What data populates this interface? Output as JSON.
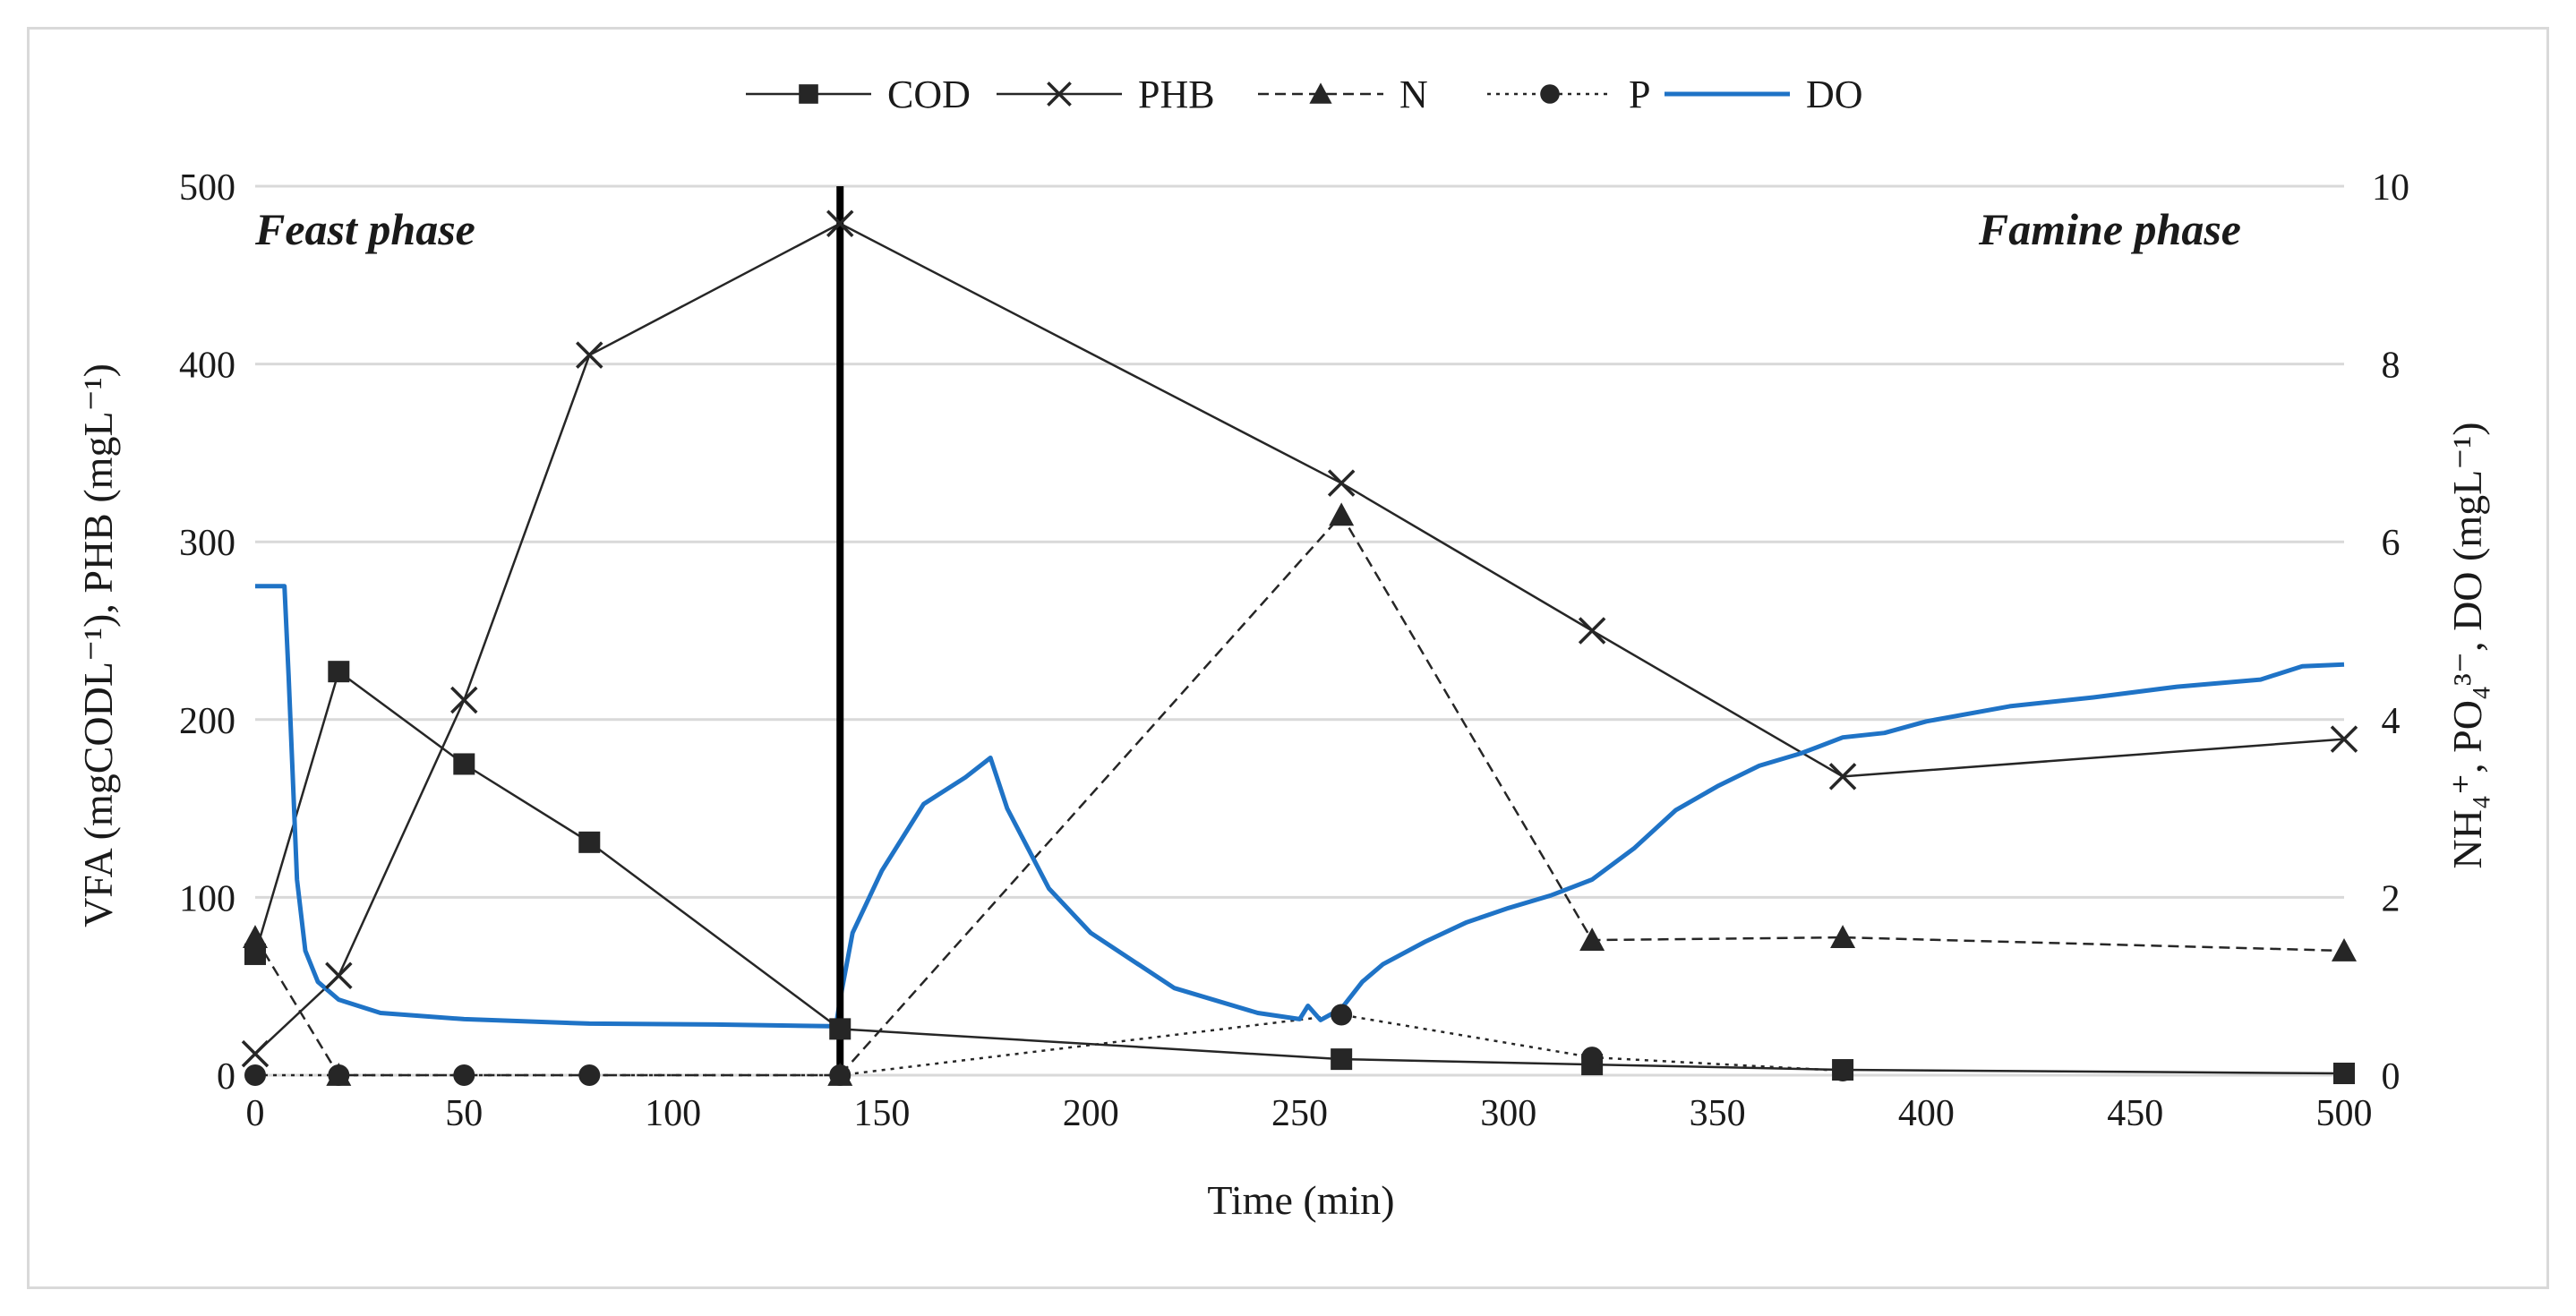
{
  "chart_data": {
    "type": "line",
    "x_axis": {
      "label": "Time (min)",
      "min": 0,
      "max": 500,
      "step": 50,
      "ticks": [
        "0",
        "50",
        "100",
        "150",
        "200",
        "250",
        "300",
        "350",
        "400",
        "450",
        "500"
      ]
    },
    "y_axis_left": {
      "label": "VFA (mgCODL⁻¹), PHB (mgL⁻¹)",
      "min": 0,
      "max": 500,
      "step": 100,
      "ticks": [
        "0",
        "100",
        "200",
        "300",
        "400",
        "500"
      ]
    },
    "y_axis_right": {
      "label": "NH₄⁺, PO₄³⁻, DO (mgL⁻¹)",
      "min": 0,
      "max": 10,
      "step": 2,
      "ticks": [
        "0",
        "2",
        "4",
        "6",
        "8",
        "10"
      ]
    },
    "annotations": {
      "feast": "Feast phase",
      "famine": "Famine phase",
      "phase_divider_x": 140
    },
    "legend": {
      "placement": "top-center",
      "entries": [
        "COD",
        "PHB",
        "N",
        "P",
        "DO"
      ]
    },
    "grid": true,
    "colors": {
      "black": "#262626",
      "do_blue": "#1f73c6",
      "grid": "#d9d9d9"
    },
    "series": [
      {
        "name": "COD",
        "axis": "left",
        "marker": "square",
        "line": "solid",
        "x": [
          0,
          20,
          50,
          80,
          140,
          260,
          320,
          380,
          500
        ],
        "y": [
          68,
          227,
          175,
          131,
          26,
          9,
          6,
          3,
          1
        ]
      },
      {
        "name": "PHB",
        "axis": "left",
        "marker": "x",
        "line": "solid",
        "x": [
          0,
          20,
          50,
          80,
          140,
          260,
          320,
          380,
          500
        ],
        "y": [
          12,
          56,
          211,
          405,
          479,
          333,
          250,
          168,
          189
        ]
      },
      {
        "name": "N",
        "axis": "right",
        "marker": "triangle",
        "line": "dashed",
        "x": [
          0,
          20,
          140,
          260,
          320,
          380,
          500
        ],
        "y": [
          1.55,
          0,
          0,
          6.3,
          1.52,
          1.55,
          1.4
        ]
      },
      {
        "name": "P",
        "axis": "right",
        "marker": "circle",
        "line": "dotted",
        "x": [
          0,
          20,
          50,
          80,
          140,
          260,
          320,
          380
        ],
        "y": [
          0,
          0,
          0,
          0,
          0,
          0.68,
          0.2,
          0.05
        ]
      },
      {
        "name": "DO",
        "axis": "right",
        "marker": "none",
        "line": "solid-blue",
        "x": [
          0,
          7,
          8,
          10,
          12,
          15,
          20,
          30,
          50,
          80,
          110,
          139,
          140,
          143,
          150,
          160,
          170,
          176,
          180,
          190,
          200,
          220,
          240,
          250,
          252,
          255,
          260,
          265,
          270,
          280,
          290,
          300,
          310,
          320,
          330,
          340,
          350,
          360,
          370,
          380,
          390,
          400,
          420,
          440,
          460,
          480,
          490,
          500
        ],
        "y": [
          5.5,
          5.5,
          4.5,
          2.2,
          1.4,
          1.05,
          0.85,
          0.7,
          0.63,
          0.58,
          0.57,
          0.55,
          0.85,
          1.6,
          2.3,
          3.05,
          3.35,
          3.57,
          3.0,
          2.1,
          1.6,
          0.98,
          0.7,
          0.63,
          0.78,
          0.62,
          0.75,
          1.05,
          1.25,
          1.5,
          1.72,
          1.88,
          2.02,
          2.2,
          2.55,
          2.98,
          3.25,
          3.48,
          3.62,
          3.8,
          3.85,
          3.98,
          4.15,
          4.25,
          4.37,
          4.45,
          4.6,
          4.62
        ]
      }
    ]
  }
}
